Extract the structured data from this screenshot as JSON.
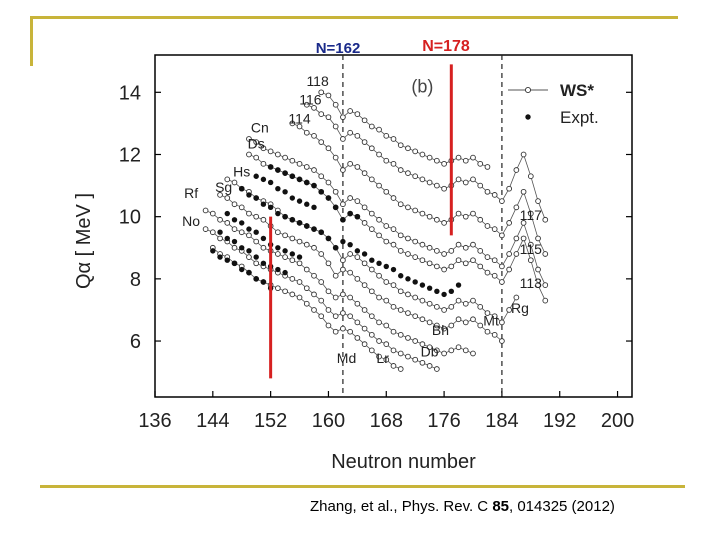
{
  "citation": {
    "text_before": "Zhang,  et al.,  Phys. Rev. C ",
    "volume": "85",
    "text_after": ", 014325 (2012)"
  },
  "colors": {
    "frame": "#c8b43a",
    "marker_line": "#d62020",
    "n162_label": "#1a2a8a",
    "n178_label": "#d62020"
  },
  "chart_data": {
    "type": "scatter",
    "panel_label": "(b)",
    "xlabel": "Neutron number",
    "ylabel": "Qα [ MeV ]",
    "xlim": [
      136,
      202
    ],
    "ylim": [
      4.2,
      15.2
    ],
    "xticks": [
      136,
      144,
      152,
      160,
      168,
      176,
      184,
      192,
      200
    ],
    "yticks": [
      6,
      8,
      10,
      12,
      14
    ],
    "grid": false,
    "legend_position": "top-right",
    "legend": [
      {
        "label": "WS*",
        "style": "open-circle-line"
      },
      {
        "label": "Expt.",
        "style": "filled-dot"
      }
    ],
    "vertical_dashed_lines": [
      162,
      184
    ],
    "highlight_lines": [
      {
        "label": "N=162",
        "x": 152,
        "y_from": 4.8,
        "y_to": 10.0
      },
      {
        "label": "N=178",
        "x": 177,
        "y_from": 9.4,
        "y_to": 14.9
      }
    ],
    "element_labels": [
      {
        "text": "118",
        "x": 158.5,
        "y": 14.2
      },
      {
        "text": "116",
        "x": 157.5,
        "y": 13.6
      },
      {
        "text": "114",
        "x": 156,
        "y": 13.0
      },
      {
        "text": "Cn",
        "x": 150.5,
        "y": 12.7
      },
      {
        "text": "Ds",
        "x": 150,
        "y": 12.2
      },
      {
        "text": "Hs",
        "x": 148,
        "y": 11.3
      },
      {
        "text": "Sg",
        "x": 145.5,
        "y": 10.8
      },
      {
        "text": "Rf",
        "x": 141,
        "y": 10.6
      },
      {
        "text": "No",
        "x": 141,
        "y": 9.7
      },
      {
        "text": "117",
        "x": 188,
        "y": 9.9
      },
      {
        "text": "115",
        "x": 188,
        "y": 8.8
      },
      {
        "text": "113",
        "x": 188,
        "y": 7.7
      },
      {
        "text": "Rg",
        "x": 186.5,
        "y": 6.9
      },
      {
        "text": "Mt",
        "x": 182.5,
        "y": 6.5
      },
      {
        "text": "Bh",
        "x": 175.5,
        "y": 6.2
      },
      {
        "text": "Db",
        "x": 174,
        "y": 5.5
      },
      {
        "text": "Lr",
        "x": 167.5,
        "y": 5.3
      },
      {
        "text": "Md",
        "x": 162.5,
        "y": 5.3
      }
    ],
    "series": [
      {
        "x": [
          159,
          160,
          161,
          162,
          163,
          164,
          165,
          166,
          167,
          168,
          169,
          170,
          171,
          172,
          173,
          174,
          175,
          176,
          177,
          178,
          179,
          180,
          181,
          182
        ],
        "y": [
          14.0,
          13.9,
          13.6,
          13.2,
          13.4,
          13.3,
          13.1,
          12.9,
          12.8,
          12.6,
          12.5,
          12.3,
          12.2,
          12.1,
          12.0,
          11.9,
          11.8,
          11.7,
          11.8,
          11.9,
          11.8,
          11.9,
          11.7,
          11.6
        ]
      },
      {
        "x": [
          157,
          158,
          159,
          160,
          161,
          162,
          163,
          164,
          165,
          166,
          167,
          168,
          169,
          170,
          171,
          172,
          173,
          174,
          175,
          176,
          177,
          178,
          179,
          180,
          181,
          182,
          183,
          184,
          185,
          186,
          187,
          188,
          189,
          190
        ],
        "y": [
          13.6,
          13.5,
          13.3,
          13.2,
          12.9,
          12.5,
          12.7,
          12.6,
          12.4,
          12.2,
          12.0,
          11.8,
          11.7,
          11.5,
          11.4,
          11.3,
          11.2,
          11.1,
          11.0,
          10.9,
          11.0,
          11.2,
          11.1,
          11.2,
          11.0,
          10.8,
          10.7,
          10.5,
          10.9,
          11.5,
          12.0,
          11.3,
          10.5,
          9.9
        ]
      },
      {
        "x": [
          155,
          156,
          157,
          158,
          159,
          160,
          161,
          162,
          163,
          164,
          165,
          166,
          167,
          168,
          169,
          170,
          171,
          172,
          173,
          174,
          175,
          176,
          177,
          178,
          179,
          180,
          181,
          182,
          183,
          184,
          185,
          186,
          187,
          188,
          189,
          190
        ],
        "y": [
          13.0,
          12.9,
          12.7,
          12.6,
          12.4,
          12.2,
          11.9,
          11.5,
          11.7,
          11.6,
          11.4,
          11.2,
          11.0,
          10.8,
          10.6,
          10.4,
          10.3,
          10.2,
          10.1,
          10.0,
          9.9,
          9.8,
          9.9,
          10.1,
          10.0,
          10.1,
          9.9,
          9.7,
          9.6,
          9.4,
          9.8,
          10.3,
          10.8,
          10.1,
          9.3,
          8.8
        ]
      },
      {
        "x": [
          149,
          150,
          151,
          152,
          153,
          154,
          155,
          156,
          157,
          158,
          159,
          160,
          161,
          162,
          163,
          164,
          165,
          166,
          167,
          168,
          169,
          170,
          171,
          172,
          173,
          174,
          175,
          176,
          177,
          178,
          179,
          180,
          181,
          182,
          183,
          184,
          185,
          186,
          187,
          188,
          189,
          190
        ],
        "y": [
          12.5,
          12.4,
          12.2,
          12.1,
          12.0,
          11.9,
          11.8,
          11.7,
          11.6,
          11.5,
          11.3,
          11.1,
          10.8,
          10.4,
          10.6,
          10.5,
          10.3,
          10.1,
          9.9,
          9.7,
          9.6,
          9.4,
          9.3,
          9.2,
          9.1,
          9.0,
          8.9,
          8.8,
          8.9,
          9.1,
          9.0,
          9.1,
          8.9,
          8.7,
          8.6,
          8.4,
          8.8,
          9.3,
          9.8,
          9.1,
          8.3,
          7.8
        ]
      },
      {
        "x": [
          149,
          150,
          151,
          152,
          153,
          154,
          155,
          156,
          157,
          158,
          159,
          160,
          161,
          162,
          163,
          164,
          165,
          166,
          167,
          168,
          169,
          170,
          171,
          172,
          173,
          174,
          175,
          176,
          177,
          178,
          179,
          180,
          181,
          182,
          183,
          184,
          185,
          186,
          187,
          188,
          189,
          190
        ],
        "y": [
          12.0,
          11.9,
          11.7,
          11.6,
          11.5,
          11.4,
          11.3,
          11.2,
          11.1,
          11.0,
          10.8,
          10.6,
          10.3,
          9.9,
          10.1,
          10.0,
          9.8,
          9.6,
          9.4,
          9.2,
          9.1,
          8.9,
          8.8,
          8.7,
          8.6,
          8.5,
          8.4,
          8.3,
          8.4,
          8.6,
          8.5,
          8.6,
          8.4,
          8.2,
          8.1,
          7.9,
          8.3,
          8.8,
          9.3,
          8.6,
          7.8,
          7.3
        ]
      },
      {
        "x": [
          146,
          147,
          148,
          149,
          150,
          151,
          152,
          153,
          154,
          155,
          156,
          157,
          158,
          159,
          160,
          161,
          162,
          163,
          164,
          165,
          166,
          167,
          168,
          169,
          170,
          171,
          172,
          173,
          174,
          175,
          176,
          177,
          178,
          179,
          180,
          181,
          182,
          183,
          184,
          185,
          186
        ],
        "y": [
          11.2,
          11.1,
          10.9,
          10.8,
          10.6,
          10.5,
          10.4,
          10.2,
          10.0,
          9.9,
          9.8,
          9.7,
          9.6,
          9.5,
          9.3,
          9.0,
          8.6,
          8.8,
          8.7,
          8.5,
          8.3,
          8.1,
          7.9,
          7.8,
          7.6,
          7.5,
          7.4,
          7.3,
          7.2,
          7.1,
          7.0,
          7.1,
          7.3,
          7.2,
          7.3,
          7.1,
          6.9,
          6.8,
          6.6,
          7.0,
          7.4
        ]
      },
      {
        "x": [
          145,
          146,
          147,
          148,
          149,
          150,
          151,
          152,
          153,
          154,
          155,
          156,
          157,
          158,
          159,
          160,
          161,
          162,
          163,
          164,
          165,
          166,
          167,
          168,
          169,
          170,
          171,
          172,
          173,
          174,
          175,
          176,
          177,
          178,
          179,
          180,
          181,
          182,
          183,
          184
        ],
        "y": [
          10.7,
          10.6,
          10.4,
          10.3,
          10.1,
          10.0,
          9.9,
          9.7,
          9.5,
          9.4,
          9.3,
          9.2,
          9.1,
          9.0,
          8.8,
          8.5,
          8.1,
          8.3,
          8.2,
          8.0,
          7.8,
          7.6,
          7.4,
          7.3,
          7.1,
          7.0,
          6.9,
          6.8,
          6.7,
          6.6,
          6.5,
          6.4,
          6.5,
          6.7,
          6.6,
          6.7,
          6.5,
          6.3,
          6.2,
          6.0
        ]
      },
      {
        "x": [
          143,
          144,
          145,
          146,
          147,
          148,
          149,
          150,
          151,
          152,
          153,
          154,
          155,
          156,
          157,
          158,
          159,
          160,
          161,
          162,
          163,
          164,
          165,
          166,
          167,
          168,
          169,
          170,
          171,
          172,
          173,
          174,
          175,
          176,
          177,
          178,
          179,
          180
        ],
        "y": [
          10.2,
          10.1,
          9.9,
          9.8,
          9.6,
          9.5,
          9.4,
          9.2,
          9.0,
          8.9,
          8.8,
          8.7,
          8.6,
          8.5,
          8.3,
          8.1,
          7.9,
          7.6,
          7.4,
          7.5,
          7.4,
          7.2,
          7.0,
          6.8,
          6.6,
          6.5,
          6.3,
          6.2,
          6.1,
          6.0,
          5.9,
          5.8,
          5.7,
          5.6,
          5.7,
          5.8,
          5.7,
          5.6
        ]
      },
      {
        "x": [
          143,
          144,
          145,
          146,
          147,
          148,
          149,
          150,
          151,
          152,
          153,
          154,
          155,
          156,
          157,
          158,
          159,
          160,
          161,
          162,
          163,
          164,
          165,
          166,
          167,
          168,
          169,
          170,
          171,
          172,
          173,
          174,
          175
        ],
        "y": [
          9.6,
          9.5,
          9.3,
          9.2,
          9.0,
          8.9,
          8.7,
          8.5,
          8.4,
          8.3,
          8.2,
          8.1,
          8.0,
          7.9,
          7.7,
          7.5,
          7.3,
          7.0,
          6.8,
          6.9,
          6.8,
          6.6,
          6.4,
          6.2,
          6.0,
          5.9,
          5.7,
          5.6,
          5.5,
          5.4,
          5.3,
          5.2,
          5.1
        ]
      },
      {
        "x": [
          144,
          145,
          146,
          147,
          148,
          149,
          150,
          151,
          152,
          153,
          154,
          155,
          156,
          157,
          158,
          159,
          160,
          161,
          162,
          163,
          164,
          165,
          166,
          167,
          168,
          169,
          170
        ],
        "y": [
          9.0,
          8.8,
          8.7,
          8.5,
          8.4,
          8.2,
          8.0,
          7.9,
          7.8,
          7.7,
          7.6,
          7.5,
          7.4,
          7.2,
          7.0,
          6.8,
          6.5,
          6.3,
          6.4,
          6.3,
          6.1,
          5.9,
          5.7,
          5.5,
          5.4,
          5.2,
          5.1
        ]
      }
    ],
    "experimental_points": {
      "x": [
        144,
        145,
        146,
        147,
        148,
        149,
        150,
        151,
        152,
        145,
        146,
        147,
        148,
        149,
        150,
        151,
        152,
        153,
        154,
        146,
        147,
        148,
        149,
        150,
        151,
        152,
        153,
        154,
        155,
        156,
        148,
        149,
        150,
        151,
        152,
        153,
        154,
        155,
        156,
        157,
        150,
        151,
        152,
        153,
        154,
        155,
        156,
        157,
        158,
        152,
        153,
        154,
        155,
        156,
        157,
        158,
        159,
        160,
        161,
        162,
        163,
        164,
        156,
        157,
        158,
        159,
        160,
        161,
        162,
        163,
        164,
        165,
        166,
        167,
        168,
        169,
        170,
        171,
        172,
        173,
        174,
        175,
        176,
        177,
        178
      ],
      "y": [
        8.9,
        8.7,
        8.6,
        8.5,
        8.3,
        8.2,
        8.0,
        7.9,
        7.7,
        9.5,
        9.3,
        9.2,
        9.0,
        8.9,
        8.7,
        8.5,
        8.4,
        8.3,
        8.2,
        10.1,
        9.9,
        9.8,
        9.6,
        9.5,
        9.3,
        9.1,
        9.0,
        8.9,
        8.8,
        8.7,
        10.9,
        10.7,
        10.6,
        10.4,
        10.3,
        10.1,
        10.0,
        9.9,
        9.8,
        9.7,
        11.3,
        11.2,
        11.1,
        10.9,
        10.8,
        10.6,
        10.5,
        10.4,
        10.3,
        11.6,
        11.5,
        11.4,
        11.3,
        11.2,
        11.1,
        11.0,
        10.8,
        10.6,
        10.3,
        9.9,
        10.1,
        10.0,
        9.8,
        9.7,
        9.6,
        9.5,
        9.3,
        9.0,
        9.2,
        9.1,
        8.9,
        8.8,
        8.6,
        8.5,
        8.4,
        8.3,
        8.1,
        8.0,
        7.9,
        7.8,
        7.7,
        7.6,
        7.5,
        7.6,
        7.8
      ]
    }
  }
}
